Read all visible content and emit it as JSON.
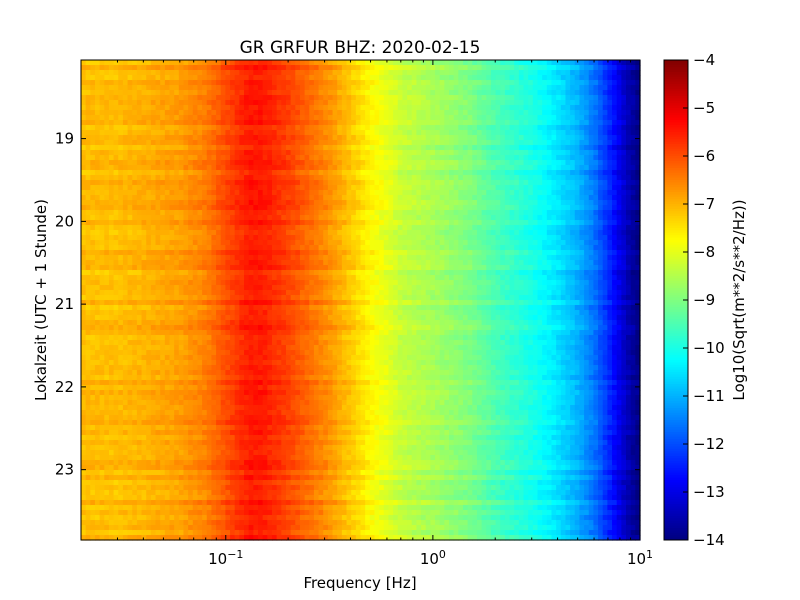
{
  "chart_data": {
    "type": "heatmap",
    "title": "GR GRFUR BHZ: 2020-02-15",
    "xlabel": "Frequency [Hz]",
    "ylabel": "Lokalzeit (UTC + 1 Stunde)",
    "xscale": "log",
    "xlim": [
      0.02,
      10
    ],
    "ylim": [
      23.85,
      18.05
    ],
    "x_ticks": [
      {
        "value": 0.1,
        "base": "10",
        "exp": "−1"
      },
      {
        "value": 1,
        "base": "10",
        "exp": "0"
      },
      {
        "value": 10,
        "base": "10",
        "exp": "1"
      }
    ],
    "y_ticks": [
      {
        "value": 19,
        "label": "19"
      },
      {
        "value": 20,
        "label": "20"
      },
      {
        "value": 21,
        "label": "21"
      },
      {
        "value": 22,
        "label": "22"
      },
      {
        "value": 23,
        "label": "23"
      }
    ],
    "colorbar": {
      "label": "Log10(Sqrt(m**2/s**2/Hz))",
      "min": -14,
      "max": -4,
      "ticks": [
        "−4",
        "−5",
        "−6",
        "−7",
        "−8",
        "−9",
        "−10",
        "−11",
        "−12",
        "−13",
        "−14"
      ],
      "colormap": "jet"
    },
    "spectrum_profile": {
      "frequency_hz": [
        0.02,
        0.03,
        0.04,
        0.06,
        0.08,
        0.1,
        0.13,
        0.15,
        0.2,
        0.3,
        0.4,
        0.5,
        0.6,
        0.7,
        1.0,
        1.5,
        2.0,
        3.0,
        4.0,
        5.0,
        6.0,
        7.0,
        8.0,
        9.0,
        10.0
      ],
      "level": [
        -7.1,
        -7.1,
        -7.0,
        -6.8,
        -6.5,
        -6.0,
        -5.5,
        -5.5,
        -5.9,
        -6.6,
        -7.2,
        -7.7,
        -8.0,
        -8.3,
        -8.6,
        -9.0,
        -9.5,
        -10.0,
        -10.5,
        -11.0,
        -11.6,
        -12.3,
        -13.0,
        -13.6,
        -14.0
      ]
    }
  }
}
